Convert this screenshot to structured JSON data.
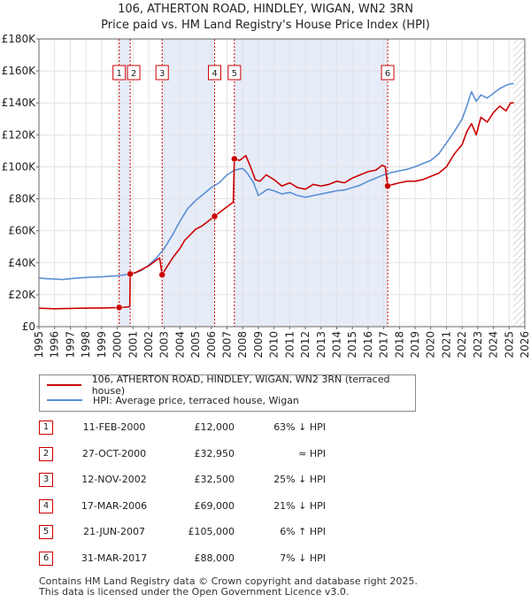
{
  "chart_data": {
    "type": "line",
    "title": "106, ATHERTON ROAD, HINDLEY, WIGAN, WN2 3RN",
    "subtitle": "Price paid vs. HM Land Registry's House Price Index (HPI)",
    "xlabel": "",
    "ylabel": "",
    "xlim": [
      1995,
      2026
    ],
    "ylim": [
      0,
      180000
    ],
    "x_ticks": [
      1995,
      1996,
      1997,
      1998,
      1999,
      2000,
      2001,
      2002,
      2003,
      2004,
      2005,
      2006,
      2007,
      2008,
      2009,
      2010,
      2011,
      2012,
      2013,
      2014,
      2015,
      2016,
      2017,
      2018,
      2019,
      2020,
      2021,
      2022,
      2023,
      2024,
      2025,
      2026
    ],
    "y_ticks": [
      {
        "value": 0,
        "label": "£0"
      },
      {
        "value": 20000,
        "label": "£20K"
      },
      {
        "value": 40000,
        "label": "£40K"
      },
      {
        "value": 60000,
        "label": "£60K"
      },
      {
        "value": 80000,
        "label": "£80K"
      },
      {
        "value": 100000,
        "label": "£100K"
      },
      {
        "value": 120000,
        "label": "£120K"
      },
      {
        "value": 140000,
        "label": "£140K"
      },
      {
        "value": 160000,
        "label": "£160K"
      },
      {
        "value": 180000,
        "label": "£180K"
      }
    ],
    "grid": true,
    "shaded_periods": [
      [
        2000.12,
        2000.82
      ],
      [
        2002.86,
        2006.21
      ],
      [
        2007.47,
        2017.25
      ]
    ],
    "hatched_from": 2025.25,
    "series": [
      {
        "name": "106, ATHERTON ROAD, HINDLEY, WIGAN, WN2 3RN (terraced house)",
        "color": "#cc0000",
        "x": [
          1995,
          1995.5,
          1996,
          1996.5,
          1997,
          1997.5,
          1998,
          1998.5,
          1999,
          1999.5,
          2000.05,
          2000.12,
          2000.5,
          2000.8,
          2000.82,
          2001.2,
          2001.6,
          2002,
          2002.4,
          2002.7,
          2002.86,
          2003.2,
          2003.6,
          2004,
          2004.3,
          2004.7,
          2005,
          2005.4,
          2005.8,
          2006.21,
          2006.6,
          2007,
          2007.4,
          2007.47,
          2007.8,
          2008.2,
          2008.5,
          2008.8,
          2009.1,
          2009.5,
          2010,
          2010.5,
          2011,
          2011.5,
          2012,
          2012.5,
          2013,
          2013.5,
          2014,
          2014.5,
          2015,
          2015.5,
          2016,
          2016.5,
          2016.9,
          2017.1,
          2017.25,
          2017.6,
          2018,
          2018.5,
          2019,
          2019.5,
          2020,
          2020.5,
          2021,
          2021.5,
          2022,
          2022.3,
          2022.6,
          2022.9,
          2023.2,
          2023.6,
          2024,
          2024.4,
          2024.8,
          2025.1,
          2025.3
        ],
        "values": [
          11500,
          11400,
          11200,
          11300,
          11400,
          11500,
          11600,
          11700,
          11700,
          11800,
          11900,
          12000,
          12200,
          12600,
          32950,
          34000,
          36000,
          38000,
          41000,
          43000,
          32500,
          38000,
          44000,
          49000,
          54000,
          58000,
          61000,
          63000,
          66000,
          69000,
          72000,
          75000,
          78000,
          105000,
          104000,
          107000,
          100000,
          92000,
          91000,
          95000,
          92000,
          88000,
          90000,
          87000,
          86000,
          89000,
          88000,
          89000,
          91000,
          90000,
          93000,
          95000,
          97000,
          98000,
          101000,
          100000,
          88000,
          89000,
          90000,
          91000,
          91000,
          92000,
          94000,
          96000,
          100000,
          108000,
          114000,
          122000,
          127000,
          120000,
          131000,
          128000,
          134000,
          138000,
          135000,
          140000,
          140000
        ]
      },
      {
        "name": "HPI: Average price, terraced house, Wigan",
        "color": "#5b8fd6",
        "x": [
          1995,
          1995.5,
          1996,
          1996.5,
          1997,
          1997.5,
          1998,
          1998.5,
          1999,
          1999.5,
          2000,
          2000.5,
          2001,
          2001.5,
          2002,
          2002.5,
          2003,
          2003.5,
          2004,
          2004.5,
          2005,
          2005.5,
          2006,
          2006.5,
          2007,
          2007.5,
          2008,
          2008.3,
          2008.7,
          2009,
          2009.3,
          2009.6,
          2010,
          2010.5,
          2011,
          2011.5,
          2012,
          2012.5,
          2013,
          2013.5,
          2014,
          2014.5,
          2015,
          2015.5,
          2016,
          2016.5,
          2017,
          2017.5,
          2018,
          2018.5,
          2019,
          2019.5,
          2020,
          2020.5,
          2021,
          2021.5,
          2022,
          2022.3,
          2022.6,
          2022.9,
          2023.2,
          2023.6,
          2024,
          2024.4,
          2024.8,
          2025.1,
          2025.3
        ],
        "values": [
          30500,
          30000,
          29800,
          29500,
          30000,
          30500,
          30800,
          31000,
          31200,
          31500,
          31800,
          32500,
          33200,
          35000,
          38500,
          43000,
          49000,
          57000,
          66000,
          74000,
          79000,
          83000,
          87000,
          90000,
          95000,
          98000,
          99000,
          96000,
          90000,
          82000,
          84000,
          86000,
          85000,
          83000,
          84000,
          82000,
          81000,
          82000,
          83000,
          84000,
          85000,
          85500,
          87000,
          88500,
          91000,
          93000,
          95000,
          96500,
          97500,
          98500,
          100000,
          102000,
          104000,
          108000,
          115000,
          122000,
          130000,
          138000,
          147000,
          141000,
          145000,
          143000,
          146000,
          149000,
          151000,
          152000,
          152000
        ]
      }
    ],
    "sales": [
      {
        "num": "1",
        "x": 2000.12,
        "price": 12000
      },
      {
        "num": "2",
        "x": 2000.82,
        "price": 32950
      },
      {
        "num": "3",
        "x": 2002.86,
        "price": 32500
      },
      {
        "num": "4",
        "x": 2006.21,
        "price": 69000
      },
      {
        "num": "5",
        "x": 2007.47,
        "price": 105000
      },
      {
        "num": "6",
        "x": 2017.25,
        "price": 88000
      }
    ]
  },
  "legend": {
    "series1": "106, ATHERTON ROAD, HINDLEY, WIGAN, WN2 3RN (terraced house)",
    "series2": "HPI: Average price, terraced house, Wigan"
  },
  "table": [
    {
      "num": "1",
      "date": "11-FEB-2000",
      "price": "£12,000",
      "hpi": "63% ↓ HPI"
    },
    {
      "num": "2",
      "date": "27-OCT-2000",
      "price": "£32,950",
      "hpi": "≈ HPI"
    },
    {
      "num": "3",
      "date": "12-NOV-2002",
      "price": "£32,500",
      "hpi": "25% ↓ HPI"
    },
    {
      "num": "4",
      "date": "17-MAR-2006",
      "price": "£69,000",
      "hpi": "21% ↓ HPI"
    },
    {
      "num": "5",
      "date": "21-JUN-2007",
      "price": "£105,000",
      "hpi": "6% ↑ HPI"
    },
    {
      "num": "6",
      "date": "31-MAR-2017",
      "price": "£88,000",
      "hpi": "7% ↓ HPI"
    }
  ],
  "footer": {
    "line1": "Contains HM Land Registry data © Crown copyright and database right 2025.",
    "line2": "This data is licensed under the Open Government Licence v3.0."
  }
}
